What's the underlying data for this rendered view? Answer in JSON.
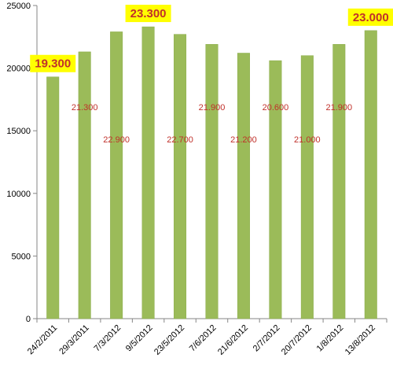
{
  "chart_data": {
    "type": "bar",
    "title": "",
    "xlabel": "",
    "ylabel": "",
    "ylim": [
      0,
      25000
    ],
    "yticks": [
      0,
      5000,
      10000,
      15000,
      20000,
      25000
    ],
    "grid": false,
    "categories": [
      "24/2/2011",
      "29/3/2011",
      "7/3/2012",
      "9/5/2012",
      "23/5/2012",
      "7/6/2012",
      "21/6/2012",
      "2/7/2012",
      "20/7/2012",
      "1/8/2012",
      "13/8/2012"
    ],
    "values": [
      19300,
      21300,
      22900,
      23300,
      22700,
      21900,
      21200,
      20600,
      21000,
      21900,
      23000
    ],
    "data_labels": [
      "19.300",
      "21.300",
      "22.900",
      "23.300",
      "22.700",
      "21.900",
      "21.200",
      "20.600",
      "21.000",
      "21.900",
      "23.000"
    ],
    "highlighted": [
      true,
      false,
      false,
      true,
      false,
      false,
      false,
      false,
      false,
      false,
      true
    ],
    "colors": {
      "bar": "#9bbb59",
      "bar_edge": "#8aab4a",
      "axis": "#868686",
      "label": "#c0302a",
      "highlight_bg": "#ffff00"
    }
  }
}
